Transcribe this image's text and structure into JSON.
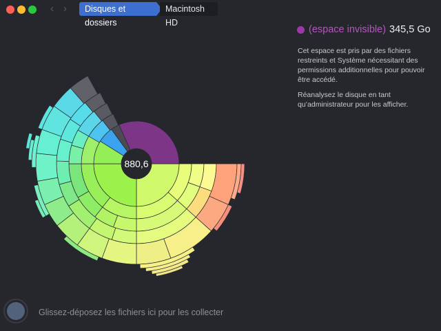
{
  "window": {
    "nav": {
      "back_icon": "‹",
      "forward_icon": "›"
    },
    "breadcrumb": {
      "parent": "Disques et dossiers",
      "current": "Macintosh HD"
    }
  },
  "chart_data": {
    "type": "sunburst",
    "center_label": "880,6",
    "highlighted_segment": {
      "name": "(espace invisible)",
      "size_label": "345,5 Go",
      "color": "#7d3588"
    }
  },
  "info_panel": {
    "title": "(espace invisible)",
    "size": "345,5 Go",
    "paragraph1": "Cet espace est pris par des fichiers restreints et Système nécessitant des permissions additionnelles pour pouvoir être accédé.",
    "paragraph2": "Réanalysez le disque en tant qu’administrateur pour les afficher."
  },
  "dropzone": {
    "label": "Glissez-déposez les fichiers ici pour les collecter"
  }
}
